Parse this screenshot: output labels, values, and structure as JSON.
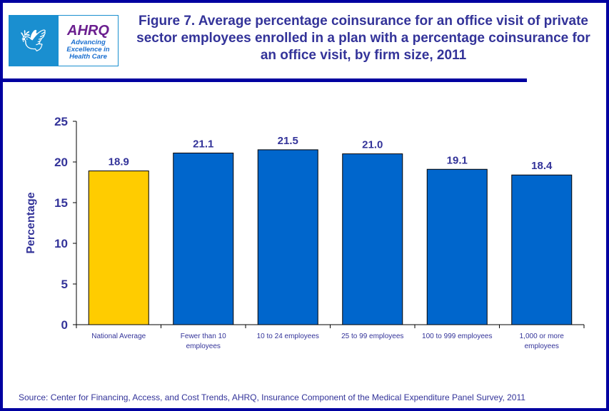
{
  "logo": {
    "org": "AHRQ",
    "tagline": "Advancing Excellence in Health Care",
    "seal": "Department of Health & Human Services USA"
  },
  "title": "Figure 7. Average percentage coinsurance for an office visit of private sector employees enrolled in a plan with a percentage coinsurance for an office visit, by firm size, 2011",
  "source": "Source: Center for Financing, Access, and Cost Trends, AHRQ, Insurance Component of the Medical Expenditure Panel Survey,  2011",
  "chart_data": {
    "type": "bar",
    "ylabel": "Percentage",
    "xlabel": "",
    "ylim": [
      0,
      25
    ],
    "yticks": [
      0,
      5,
      10,
      15,
      20,
      25
    ],
    "categories": [
      [
        "National Average"
      ],
      [
        "Fewer than 10",
        "employees"
      ],
      [
        "10 to 24 employees"
      ],
      [
        "25 to 99 employees"
      ],
      [
        "100 to 999 employees"
      ],
      [
        "1,000 or more",
        "employees"
      ]
    ],
    "values": [
      18.9,
      21.1,
      21.5,
      21.0,
      19.1,
      18.4
    ],
    "labels": [
      "18.9",
      "21.1",
      "21.5",
      "21.0",
      "19.1",
      "18.4"
    ],
    "colors": [
      "#FFCC00",
      "#0066CC",
      "#0066CC",
      "#0066CC",
      "#0066CC",
      "#0066CC"
    ]
  }
}
